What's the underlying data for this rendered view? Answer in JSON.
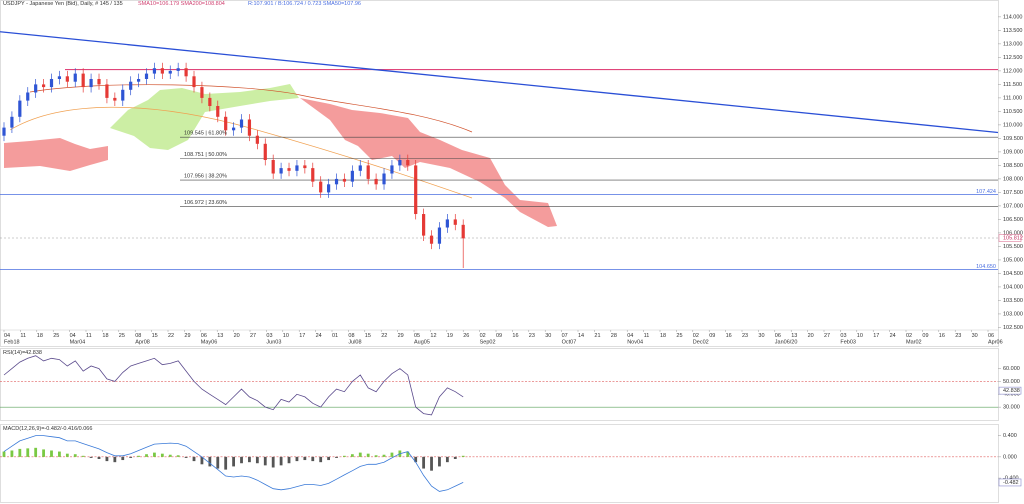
{
  "header": {
    "title": "USDJPY - Japanese Yen (Bid), Daily, # 145 / 135",
    "sma_short": "SMA10=106.179  SMA200=108.804",
    "sma_long": "R:107.901 / B:106.724 / 0.723  SMA50=107.96"
  },
  "chart_data": [
    {
      "type": "candlestick",
      "open": [
        109.6,
        109.9,
        110.3,
        110.9,
        111.2,
        111.5,
        111.4,
        111.7,
        111.8,
        111.6,
        111.9,
        111.4,
        111.7,
        111.5,
        111.0,
        110.9,
        111.3,
        111.6,
        111.7,
        111.9,
        112.1,
        111.9,
        112.0,
        112.1,
        111.8,
        111.4,
        111.0,
        110.7,
        110.3,
        109.8,
        109.9,
        110.2,
        109.6,
        109.3,
        108.7,
        108.2,
        108.4,
        108.3,
        108.5,
        108.4,
        107.9,
        107.5,
        107.8,
        108.0,
        107.9,
        108.3,
        108.5,
        108.0,
        107.8,
        108.2,
        108.5,
        108.7,
        108.5,
        106.7,
        105.9,
        105.6,
        106.2,
        106.5,
        106.3
      ],
      "high": [
        110.1,
        110.5,
        111.1,
        111.4,
        111.7,
        111.7,
        111.9,
        112.0,
        112.0,
        112.1,
        112.1,
        111.9,
        111.9,
        111.7,
        111.2,
        111.5,
        111.8,
        111.9,
        112.1,
        112.3,
        112.3,
        112.2,
        112.3,
        112.3,
        112.0,
        111.6,
        111.2,
        110.9,
        110.5,
        110.1,
        110.4,
        110.4,
        109.8,
        109.5,
        108.9,
        108.6,
        108.6,
        108.7,
        108.7,
        108.6,
        108.1,
        108.0,
        108.2,
        108.2,
        108.5,
        108.7,
        108.7,
        108.2,
        108.4,
        108.7,
        108.9,
        108.9,
        108.7,
        106.9,
        106.1,
        106.4,
        106.7,
        106.7,
        106.5
      ],
      "low": [
        109.4,
        109.7,
        110.1,
        110.7,
        111.0,
        111.2,
        111.2,
        111.5,
        111.4,
        111.4,
        111.2,
        111.2,
        111.3,
        110.8,
        110.7,
        110.7,
        111.1,
        111.4,
        111.5,
        111.7,
        111.7,
        111.7,
        111.8,
        111.6,
        111.2,
        110.8,
        110.5,
        110.1,
        109.6,
        109.6,
        109.7,
        109.4,
        109.1,
        108.5,
        108.0,
        108.0,
        108.1,
        108.1,
        108.2,
        107.7,
        107.3,
        107.3,
        107.6,
        107.7,
        107.7,
        108.1,
        107.8,
        107.6,
        107.6,
        108.0,
        108.3,
        108.3,
        106.5,
        105.7,
        105.4,
        105.4,
        106.0,
        106.1,
        104.7
      ],
      "close": [
        109.9,
        110.3,
        110.9,
        111.2,
        111.5,
        111.4,
        111.7,
        111.8,
        111.6,
        111.9,
        111.4,
        111.7,
        111.5,
        111.0,
        110.9,
        111.3,
        111.6,
        111.7,
        111.9,
        112.1,
        111.9,
        112.0,
        112.1,
        111.8,
        111.4,
        111.0,
        110.7,
        110.3,
        109.8,
        109.9,
        110.2,
        109.6,
        109.3,
        108.7,
        108.2,
        108.4,
        108.3,
        108.5,
        108.4,
        107.9,
        107.5,
        107.8,
        108.0,
        107.9,
        108.3,
        108.5,
        108.0,
        107.8,
        108.2,
        108.5,
        108.7,
        108.5,
        106.7,
        105.9,
        105.6,
        106.2,
        106.5,
        106.3,
        105.8
      ],
      "up_color": "#2f55d4",
      "down_color": "#e53935",
      "ylim": [
        101.85,
        114.44
      ],
      "yticks": [
        {
          "value": 114,
          "label": "114.000"
        },
        {
          "value": 113.5,
          "label": "113.500"
        },
        {
          "value": 113,
          "label": "113.000"
        },
        {
          "value": 112.5,
          "label": "112.500"
        },
        {
          "value": 112,
          "label": "112.000"
        },
        {
          "value": 111.5,
          "label": "111.500"
        },
        {
          "value": 111,
          "label": "111.000"
        },
        {
          "value": 110.5,
          "label": "110.500"
        },
        {
          "value": 110,
          "label": "110.000"
        },
        {
          "value": 109.5,
          "label": "109.500"
        },
        {
          "value": 109,
          "label": "109.000"
        },
        {
          "value": 108.5,
          "label": "108.500"
        },
        {
          "value": 108,
          "label": "108.000"
        },
        {
          "value": 107.5,
          "label": "107.500"
        },
        {
          "value": 107,
          "label": "107.000"
        },
        {
          "value": 106.5,
          "label": "106.500"
        },
        {
          "value": 106,
          "label": "106.000"
        },
        {
          "value": 105.5,
          "label": "105.500"
        },
        {
          "value": 105,
          "label": "105.000"
        },
        {
          "value": 104.5,
          "label": "104.500"
        },
        {
          "value": 104,
          "label": "104.000"
        },
        {
          "value": 103.5,
          "label": "103.500"
        },
        {
          "value": 103,
          "label": "103.000"
        },
        {
          "value": 102.5,
          "label": "102.500"
        }
      ],
      "xticks": [
        {
          "day": "04",
          "month": "Feb18"
        },
        {
          "day": "11"
        },
        {
          "day": "18"
        },
        {
          "day": "25"
        },
        {
          "day": "04",
          "month": "Mar04"
        },
        {
          "day": "11"
        },
        {
          "day": "18"
        },
        {
          "day": "25"
        },
        {
          "day": "08",
          "month": "Apr08"
        },
        {
          "day": "15"
        },
        {
          "day": "22"
        },
        {
          "day": "29"
        },
        {
          "day": "06",
          "month": "May06"
        },
        {
          "day": "13"
        },
        {
          "day": "20"
        },
        {
          "day": "27"
        },
        {
          "day": "03",
          "month": "Jun03"
        },
        {
          "day": "10"
        },
        {
          "day": "17"
        },
        {
          "day": "24"
        },
        {
          "day": "01"
        },
        {
          "day": "08",
          "month": "Jul08"
        },
        {
          "day": "15"
        },
        {
          "day": "22"
        },
        {
          "day": "29"
        },
        {
          "day": "05",
          "month": "Aug05"
        },
        {
          "day": "12"
        },
        {
          "day": "19"
        },
        {
          "day": "26"
        },
        {
          "day": "02",
          "month": "Sep02"
        },
        {
          "day": "09"
        },
        {
          "day": "16"
        },
        {
          "day": "23"
        },
        {
          "day": "30"
        },
        {
          "day": "07",
          "month": "Oct07"
        },
        {
          "day": "14"
        },
        {
          "day": "21"
        },
        {
          "day": "28"
        },
        {
          "day": "04",
          "month": "Nov04"
        },
        {
          "day": "11"
        },
        {
          "day": "18"
        },
        {
          "day": "25"
        },
        {
          "day": "02",
          "month": "Dec02"
        },
        {
          "day": "09"
        },
        {
          "day": "16"
        },
        {
          "day": "23"
        },
        {
          "day": "30"
        },
        {
          "day": "06",
          "month": "Jan06/20"
        },
        {
          "day": "13"
        },
        {
          "day": "20"
        },
        {
          "day": "27"
        },
        {
          "day": "03",
          "month": "Feb03"
        },
        {
          "day": "10"
        },
        {
          "day": "17"
        },
        {
          "day": "24"
        },
        {
          "day": "02",
          "month": "Mar02"
        },
        {
          "day": "09"
        },
        {
          "day": "16"
        },
        {
          "day": "23"
        },
        {
          "day": "30"
        },
        {
          "day": "06",
          "month": "Apr06"
        }
      ],
      "fib_levels": [
        {
          "value": 109.545,
          "label": "109.545 | 61.80%"
        },
        {
          "value": 108.751,
          "label": "108.751 | 50.00%"
        },
        {
          "value": 107.956,
          "label": "107.956 | 38.20%"
        },
        {
          "value": 106.972,
          "label": "106.972 | 23.60%"
        }
      ],
      "levels": [
        {
          "value": 107.424,
          "label": "107.424",
          "color": "#4a6ee0"
        },
        {
          "value": 104.65,
          "label": "104.650",
          "color": "#4a6ee0"
        }
      ],
      "last_price": {
        "value": 105.812,
        "label": "105.812",
        "color": "#e07a9a"
      },
      "resistance": {
        "value": 112.05,
        "color": "#e0457a"
      },
      "trendline": {
        "values": [
          113.45,
          109.72
        ],
        "color": "#2a4fd6"
      }
    },
    {
      "type": "line",
      "title": "RSI(14)=42.838",
      "color": "#5a4a8c",
      "values": [
        55,
        60,
        65,
        68,
        70,
        66,
        68,
        67,
        62,
        66,
        58,
        62,
        60,
        52,
        50,
        57,
        62,
        64,
        66,
        68,
        63,
        64,
        66,
        58,
        50,
        44,
        40,
        36,
        32,
        38,
        44,
        38,
        35,
        30,
        28,
        36,
        34,
        40,
        38,
        33,
        30,
        38,
        44,
        42,
        50,
        55,
        45,
        42,
        50,
        56,
        60,
        55,
        30,
        25,
        24,
        38,
        45,
        42,
        38
      ],
      "ylim": [
        20,
        76
      ],
      "yticks": [
        {
          "value": 60,
          "label": "60.000"
        },
        {
          "value": 50,
          "label": "50.000"
        },
        {
          "value": 40,
          "label": "40.000"
        },
        {
          "value": 30,
          "label": "30.000"
        }
      ],
      "levels": [
        {
          "value": 50,
          "color": "#e06060"
        },
        {
          "value": 30,
          "color": "#5aa05a"
        }
      ],
      "last": {
        "value": 42.838,
        "label": "42.838"
      }
    },
    {
      "type": "bar",
      "title": "MACD(12,26,9)=-0.482/-0.416/0.066",
      "values": [
        0.1,
        0.12,
        0.15,
        0.16,
        0.17,
        0.14,
        0.12,
        0.1,
        0.06,
        0.05,
        0.02,
        -0.02,
        -0.04,
        -0.08,
        -0.1,
        -0.06,
        -0.02,
        0.02,
        0.05,
        0.08,
        0.06,
        0.04,
        0.03,
        -0.02,
        -0.08,
        -0.14,
        -0.18,
        -0.22,
        -0.24,
        -0.18,
        -0.12,
        -0.1,
        -0.12,
        -0.16,
        -0.2,
        -0.16,
        -0.12,
        -0.08,
        -0.06,
        -0.08,
        -0.1,
        -0.06,
        -0.02,
        0.02,
        0.05,
        0.08,
        0.06,
        0.03,
        0.04,
        0.08,
        0.12,
        0.1,
        -0.1,
        -0.22,
        -0.26,
        -0.18,
        -0.1,
        -0.04,
        0.02
      ],
      "up_color": "#7ac943",
      "down_color": "#555555",
      "line": {
        "color": "#3a7ad8",
        "values": [
          0.1,
          0.2,
          0.3,
          0.35,
          0.4,
          0.4,
          0.38,
          0.36,
          0.3,
          0.3,
          0.25,
          0.2,
          0.15,
          0.08,
          0.02,
          0.02,
          0.06,
          0.12,
          0.18,
          0.24,
          0.25,
          0.26,
          0.25,
          0.2,
          0.1,
          0,
          -0.12,
          -0.24,
          -0.36,
          -0.38,
          -0.36,
          -0.38,
          -0.44,
          -0.52,
          -0.6,
          -0.62,
          -0.6,
          -0.56,
          -0.52,
          -0.52,
          -0.54,
          -0.5,
          -0.42,
          -0.34,
          -0.26,
          -0.18,
          -0.14,
          -0.14,
          -0.1,
          -0.02,
          0.06,
          0.1,
          -0.1,
          -0.35,
          -0.55,
          -0.65,
          -0.62,
          -0.55,
          -0.48
        ]
      },
      "ylim": [
        -0.85,
        0.6
      ],
      "yticks": [
        {
          "value": 0.4,
          "label": "0.400"
        },
        {
          "value": 0,
          "label": "0.000"
        },
        {
          "value": -0.4,
          "label": "-0.400"
        }
      ],
      "zero_color": "#e06060",
      "last": {
        "value": -0.482,
        "label": "-0.482"
      }
    }
  ]
}
